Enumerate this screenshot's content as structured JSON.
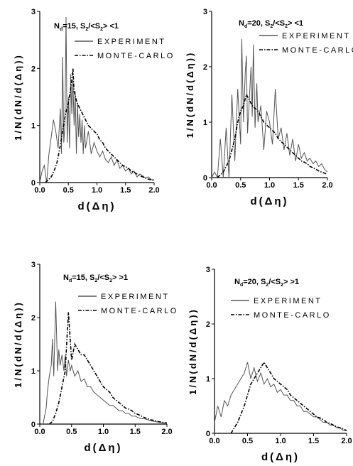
{
  "chart_data": [
    {
      "type": "line",
      "panel": "top-left",
      "annotation": {
        "n_label": "N",
        "n_sub": "d",
        "n_val": "=15,",
        "s_a": "S",
        "s_a_sub": "2",
        "s_mid": "/<S",
        "s_b_sub": "2",
        "s_end": "> <1"
      },
      "xlabel": "d(Δη)",
      "ylabel": "1/N(dN/d(Δη))",
      "xlim": [
        0.0,
        2.0
      ],
      "ylim": [
        0,
        3
      ],
      "xticks": [
        "0.0",
        "0.5",
        "1.0",
        "1.5",
        "2.0"
      ],
      "yticks": [
        "0",
        "1",
        "2",
        "3"
      ],
      "legend": [
        {
          "label": "EXPERIMENT",
          "style": "solid"
        },
        {
          "label": "MONTE-CARLO",
          "style": "dashdot"
        }
      ],
      "legend_position": "top-right",
      "series": [
        {
          "style": "solid",
          "color": "#555555",
          "x": [
            0.0,
            0.04,
            0.08,
            0.12,
            0.16,
            0.2,
            0.24,
            0.28,
            0.32,
            0.36,
            0.38,
            0.4,
            0.42,
            0.44,
            0.46,
            0.48,
            0.5,
            0.52,
            0.54,
            0.56,
            0.58,
            0.6,
            0.62,
            0.64,
            0.66,
            0.68,
            0.7,
            0.72,
            0.74,
            0.76,
            0.78,
            0.8,
            0.85,
            0.9,
            0.95,
            1.0,
            1.05,
            1.1,
            1.15,
            1.2,
            1.25,
            1.3,
            1.35,
            1.4,
            1.45,
            1.5,
            1.55,
            1.6,
            1.65,
            1.7,
            1.75,
            1.8,
            1.85,
            1.9,
            1.95,
            2.0
          ],
          "y": [
            0.0,
            0.2,
            0.3,
            0.0,
            0.5,
            0.8,
            1.1,
            0.9,
            0.6,
            1.3,
            0.5,
            2.2,
            0.7,
            1.0,
            2.9,
            0.7,
            1.5,
            0.6,
            1.9,
            1.2,
            1.8,
            1.0,
            1.6,
            0.5,
            1.4,
            0.8,
            1.2,
            0.7,
            1.1,
            0.5,
            1.0,
            0.6,
            0.9,
            0.5,
            0.7,
            0.55,
            0.45,
            0.55,
            0.4,
            0.35,
            0.45,
            0.3,
            0.4,
            0.25,
            0.3,
            0.2,
            0.25,
            0.15,
            0.2,
            0.1,
            0.15,
            0.12,
            0.08,
            0.1,
            0.05,
            0.05
          ]
        },
        {
          "style": "dashdot",
          "color": "#000000",
          "x": [
            0.1,
            0.15,
            0.2,
            0.25,
            0.3,
            0.35,
            0.4,
            0.45,
            0.5,
            0.55,
            0.58,
            0.6,
            0.65,
            0.7,
            0.75,
            0.8,
            0.85,
            0.9,
            0.95,
            1.0,
            1.05,
            1.1,
            1.15,
            1.2,
            1.25,
            1.3,
            1.35,
            1.4,
            1.45,
            1.5,
            1.55,
            1.6,
            1.65,
            1.7,
            1.75,
            1.8,
            1.85,
            1.9,
            1.95,
            2.0
          ],
          "y": [
            0.0,
            0.05,
            0.1,
            0.2,
            0.35,
            0.6,
            0.9,
            1.2,
            1.4,
            1.7,
            2.0,
            1.6,
            1.4,
            1.3,
            1.2,
            1.1,
            1.0,
            0.95,
            0.9,
            0.85,
            0.75,
            0.7,
            0.6,
            0.55,
            0.5,
            0.45,
            0.4,
            0.35,
            0.3,
            0.28,
            0.25,
            0.2,
            0.18,
            0.15,
            0.12,
            0.1,
            0.08,
            0.06,
            0.05,
            0.04
          ]
        }
      ]
    },
    {
      "type": "line",
      "panel": "top-right",
      "annotation": {
        "n_label": "N",
        "n_sub": "d",
        "n_val": "=20,",
        "s_a": "S",
        "s_a_sub": "2",
        "s_mid": "/<S",
        "s_b_sub": "2",
        "s_end": "> <1"
      },
      "xlabel": "d(Δη)",
      "ylabel": "1/N(dN/d(Δη))",
      "xlim": [
        0.0,
        2.0
      ],
      "ylim": [
        0,
        3
      ],
      "xticks": [
        "0.0",
        "0.5",
        "1.0",
        "1.5",
        "2.0"
      ],
      "yticks": [
        "0",
        "1",
        "2",
        "3"
      ],
      "legend": [
        {
          "label": "EXPERIMENT",
          "style": "solid"
        },
        {
          "label": "MONTE-CARLO",
          "style": "dashdot"
        }
      ],
      "legend_position": "top-right",
      "series": [
        {
          "style": "solid",
          "color": "#555555",
          "x": [
            0.0,
            0.05,
            0.1,
            0.15,
            0.2,
            0.25,
            0.3,
            0.35,
            0.4,
            0.45,
            0.5,
            0.52,
            0.55,
            0.58,
            0.6,
            0.62,
            0.65,
            0.68,
            0.7,
            0.72,
            0.75,
            0.78,
            0.8,
            0.85,
            0.9,
            0.95,
            1.0,
            1.05,
            1.1,
            1.15,
            1.2,
            1.25,
            1.3,
            1.35,
            1.4,
            1.45,
            1.5,
            1.55,
            1.6,
            1.65,
            1.7,
            1.75,
            1.8,
            1.85,
            1.9,
            1.95,
            2.0
          ],
          "y": [
            0.0,
            0.1,
            0.0,
            0.7,
            0.0,
            0.9,
            0.0,
            1.5,
            0.3,
            1.6,
            0.6,
            2.5,
            1.0,
            1.9,
            2.2,
            0.8,
            1.4,
            2.0,
            1.1,
            2.4,
            0.9,
            1.7,
            1.0,
            1.3,
            0.5,
            1.2,
            1.0,
            0.6,
            1.6,
            0.7,
            0.9,
            0.5,
            0.8,
            0.4,
            0.7,
            0.3,
            0.6,
            0.35,
            0.45,
            0.3,
            0.35,
            0.25,
            0.3,
            0.2,
            0.25,
            0.15,
            0.1
          ]
        },
        {
          "style": "dashdot",
          "color": "#000000",
          "x": [
            0.1,
            0.15,
            0.2,
            0.25,
            0.3,
            0.35,
            0.4,
            0.45,
            0.5,
            0.55,
            0.6,
            0.65,
            0.7,
            0.75,
            0.8,
            0.85,
            0.9,
            0.95,
            1.0,
            1.05,
            1.1,
            1.15,
            1.2,
            1.25,
            1.3,
            1.35,
            1.4,
            1.45,
            1.5,
            1.55,
            1.6,
            1.65,
            1.7,
            1.75,
            1.8,
            1.85,
            1.9,
            1.95,
            2.0
          ],
          "y": [
            0.0,
            0.05,
            0.1,
            0.2,
            0.3,
            0.5,
            0.7,
            1.0,
            1.2,
            1.3,
            1.5,
            1.4,
            1.3,
            1.25,
            1.2,
            1.1,
            1.0,
            0.95,
            0.9,
            0.85,
            0.8,
            0.7,
            0.65,
            0.6,
            0.55,
            0.5,
            0.45,
            0.4,
            0.35,
            0.3,
            0.28,
            0.25,
            0.2,
            0.18,
            0.15,
            0.12,
            0.1,
            0.08,
            0.06
          ]
        }
      ]
    },
    {
      "type": "line",
      "panel": "bottom-left",
      "annotation": {
        "n_label": "N",
        "n_sub": "d",
        "n_val": "=15,",
        "s_a": "S",
        "s_a_sub": "2",
        "s_mid": "/<S",
        "s_b_sub": "2",
        "s_end": "> >1"
      },
      "xlabel": "d(Δη)",
      "ylabel": "1/N(dN/d(Δη))",
      "xlim": [
        0.0,
        2.0
      ],
      "ylim": [
        0,
        3
      ],
      "xticks": [
        "0.0",
        "0.5",
        "1.0",
        "1.5",
        "2.0"
      ],
      "yticks": [
        "0",
        "1",
        "2",
        "3"
      ],
      "legend": [
        {
          "label": "EXPERIMENT",
          "style": "solid"
        },
        {
          "label": "MONTE-CARLO",
          "style": "dashdot"
        }
      ],
      "legend_position": "top-right",
      "series": [
        {
          "style": "solid",
          "color": "#555555",
          "x": [
            0.05,
            0.1,
            0.12,
            0.15,
            0.18,
            0.2,
            0.22,
            0.25,
            0.28,
            0.3,
            0.32,
            0.35,
            0.38,
            0.4,
            0.42,
            0.45,
            0.48,
            0.5,
            0.55,
            0.6,
            0.65,
            0.7,
            0.75,
            0.8,
            0.85,
            0.9,
            0.95,
            1.0,
            1.05,
            1.1,
            1.15,
            1.2,
            1.25,
            1.3,
            1.35,
            1.4,
            1.45,
            1.5,
            1.55,
            1.6,
            1.65,
            1.7,
            1.75,
            1.8,
            1.85,
            1.9,
            1.95,
            2.0
          ],
          "y": [
            0.0,
            0.3,
            0.6,
            0.9,
            1.1,
            1.6,
            0.9,
            2.3,
            1.0,
            1.4,
            1.1,
            1.3,
            1.0,
            1.3,
            0.9,
            1.2,
            1.0,
            1.1,
            0.9,
            1.0,
            0.8,
            0.85,
            0.7,
            0.7,
            0.6,
            0.55,
            0.5,
            0.45,
            0.4,
            0.35,
            0.35,
            0.3,
            0.25,
            0.25,
            0.2,
            0.2,
            0.15,
            0.15,
            0.12,
            0.1,
            0.1,
            0.08,
            0.06,
            0.05,
            0.04,
            0.03,
            0.02,
            0.02
          ]
        },
        {
          "style": "dashdot",
          "color": "#000000",
          "x": [
            0.15,
            0.2,
            0.25,
            0.3,
            0.35,
            0.4,
            0.45,
            0.5,
            0.55,
            0.6,
            0.65,
            0.7,
            0.75,
            0.8,
            0.85,
            0.9,
            0.95,
            1.0,
            1.05,
            1.1,
            1.15,
            1.2,
            1.25,
            1.3,
            1.35,
            1.4,
            1.45,
            1.5,
            1.55,
            1.6,
            1.65,
            1.7,
            1.75,
            1.8,
            1.85,
            1.9,
            1.95,
            2.0
          ],
          "y": [
            0.0,
            0.05,
            0.2,
            0.4,
            0.7,
            1.0,
            2.1,
            1.2,
            1.5,
            1.4,
            1.3,
            1.3,
            1.2,
            1.1,
            1.0,
            0.9,
            0.8,
            0.7,
            0.65,
            0.6,
            0.5,
            0.45,
            0.4,
            0.35,
            0.3,
            0.28,
            0.25,
            0.2,
            0.18,
            0.15,
            0.12,
            0.1,
            0.08,
            0.07,
            0.05,
            0.04,
            0.03,
            0.02
          ]
        }
      ]
    },
    {
      "type": "line",
      "panel": "bottom-right",
      "annotation": {
        "n_label": "N",
        "n_sub": "d",
        "n_val": "=20,",
        "s_a": "S",
        "s_a_sub": "2",
        "s_mid": "/<S",
        "s_b_sub": "2",
        "s_end": "> >1"
      },
      "xlabel": "d(Δη)",
      "ylabel": "1/N(dN/d(Δη))",
      "xlim": [
        0.0,
        2.0
      ],
      "ylim": [
        0,
        3
      ],
      "xticks": [
        "0.0",
        "0.5",
        "1.0",
        "1.5",
        "2.0"
      ],
      "yticks": [
        "0",
        "1",
        "2",
        "3"
      ],
      "legend": [
        {
          "label": "EXPERIMENT",
          "style": "solid"
        },
        {
          "label": "MONTE-CARLO",
          "style": "dashdot"
        }
      ],
      "legend_position": "top-right",
      "series": [
        {
          "style": "solid",
          "color": "#555555",
          "x": [
            0.0,
            0.05,
            0.1,
            0.15,
            0.2,
            0.25,
            0.3,
            0.35,
            0.4,
            0.45,
            0.5,
            0.55,
            0.6,
            0.65,
            0.7,
            0.75,
            0.8,
            0.85,
            0.9,
            0.95,
            1.0,
            1.05,
            1.1,
            1.15,
            1.2,
            1.25,
            1.3,
            1.35,
            1.4,
            1.45,
            1.5,
            1.55,
            1.6,
            1.65,
            1.7,
            1.75,
            1.8,
            1.85,
            1.9,
            1.95,
            2.0
          ],
          "y": [
            0.2,
            0.5,
            0.3,
            0.6,
            0.5,
            0.7,
            0.8,
            0.9,
            1.0,
            1.1,
            1.3,
            1.0,
            1.2,
            0.95,
            1.1,
            0.9,
            1.0,
            0.85,
            0.9,
            0.75,
            0.8,
            0.7,
            0.7,
            0.6,
            0.6,
            0.5,
            0.5,
            0.4,
            0.4,
            0.35,
            0.3,
            0.3,
            0.25,
            0.2,
            0.2,
            0.15,
            0.15,
            0.1,
            0.1,
            0.05,
            0.05
          ]
        },
        {
          "style": "dashdot",
          "color": "#000000",
          "x": [
            0.25,
            0.3,
            0.35,
            0.4,
            0.45,
            0.5,
            0.55,
            0.6,
            0.65,
            0.7,
            0.75,
            0.8,
            0.85,
            0.9,
            0.95,
            1.0,
            1.05,
            1.1,
            1.15,
            1.2,
            1.25,
            1.3,
            1.35,
            1.4,
            1.45,
            1.5,
            1.55,
            1.6,
            1.65,
            1.7,
            1.75,
            1.8,
            1.85,
            1.9,
            1.95,
            2.0
          ],
          "y": [
            0.0,
            0.1,
            0.2,
            0.35,
            0.5,
            0.7,
            0.9,
            1.0,
            1.1,
            1.2,
            1.3,
            1.2,
            1.1,
            1.0,
            0.95,
            0.9,
            0.85,
            0.8,
            0.7,
            0.65,
            0.6,
            0.55,
            0.5,
            0.45,
            0.4,
            0.35,
            0.3,
            0.28,
            0.25,
            0.2,
            0.18,
            0.15,
            0.12,
            0.1,
            0.08,
            0.05
          ]
        }
      ]
    }
  ]
}
